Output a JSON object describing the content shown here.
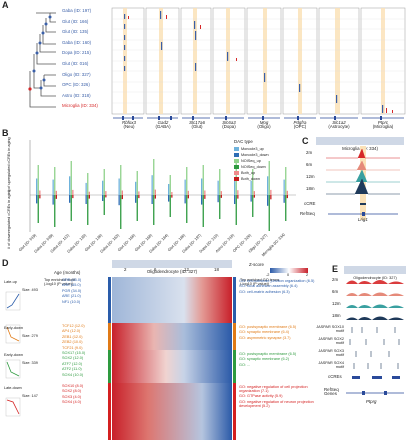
{
  "panel_labels": {
    "a": "A",
    "b": "B",
    "c": "C",
    "d": "D",
    "e": "E"
  },
  "panel_a": {
    "rows": [
      "Gaba (ID: 197)",
      "Glut (ID: 166)",
      "Glut (ID: 135)",
      "Gaba (ID: 160)",
      "Dopa (ID: 215)",
      "Glut (ID: 016)",
      "Oligo (ID: 327)",
      "OPC (ID: 326)",
      "Astro (ID: 318)",
      "Microglia (ID: 334)"
    ],
    "row_colors": [
      "#3a5fa8",
      "#3a5fa8",
      "#3a5fa8",
      "#3a5fa8",
      "#3a5fa8",
      "#3a5fa8",
      "#3a5fa8",
      "#3a5fa8",
      "#3a5fa8",
      "#d62728"
    ],
    "genes": [
      "Rbfox3",
      "Gad2",
      "Slc17a6",
      "Slc6a3",
      "Mog",
      "Pdgfra",
      "Slc1a2",
      "Ptprc"
    ],
    "gene_celltypes": [
      "(Neu)",
      "(GABA)",
      "(Glut)",
      "(Dopa)",
      "(Oligo)",
      "(OPC)",
      "(Astrocyte)",
      "(Microglia)"
    ]
  },
  "panel_b": {
    "ylabel_top": "# of upregulated cCREs in aging",
    "ylabel_bottom": "# of downregulated cCREs in aging",
    "legend_title": "DAC type",
    "legend": [
      {
        "label": "Monocle3_up",
        "color": "#6fb3dc"
      },
      {
        "label": "Monocle3_down",
        "color": "#2e6eb5"
      },
      {
        "label": "NOISeq_up",
        "color": "#8fd28a"
      },
      {
        "label": "NOISeq_down",
        "color": "#2e9a3f"
      },
      {
        "label": "Both_up",
        "color": "#f08b8b"
      },
      {
        "label": "Both_down",
        "color": "#c41d1d"
      }
    ],
    "categories": [
      "Glut (ID: 019)",
      "Gaba (ID: 039)",
      "Gaba (ID: 112)",
      "Gaba (ID: 135)",
      "Glut (ID: 136)",
      "Gaba (ID: 163)",
      "Glut (ID: 166)",
      "Glut (ID: 168)",
      "Gaba (ID: 184)",
      "Glut (ID: 186)",
      "Gaba (ID: 197)",
      "Dopa (ID: 215)",
      "Astro (ID: 318)",
      "OPC (ID: 326)",
      "Oligo (ID: 327)",
      "Microglia (ID: 334)"
    ]
  },
  "panel_c": {
    "title": "Microglia (ID: 334)",
    "tracks": [
      "2m",
      "6m",
      "12m",
      "18m"
    ],
    "track_colors": [
      "#d62728",
      "#e58a7a",
      "#3aa0a0",
      "#1f3a5a"
    ],
    "ccre_label": "cCRE",
    "refseq_label": "RefSeq",
    "gene": "Lrig1"
  },
  "panel_d": {
    "top_label": "Oligodendrocyte (ID: 327)",
    "age_label": "Age (months)",
    "ages": [
      "2",
      "6",
      "12",
      "18"
    ],
    "zscore_label": "Z-score",
    "zscore_ticks": [
      "-2",
      "0",
      "2"
    ],
    "motif_header": "Top enriched motif\n(-log10 (P value))",
    "go_header": "Top enriched GO terms\n(-log10 (P value))",
    "groups": [
      {
        "name": "Late-up",
        "size": "Size: 493",
        "color": "blue",
        "motifs": [
          "GRE (45.0)",
          "ARE (45.0)",
          "PGR (34.0)",
          "ARE (21.0)",
          "NF1 (10.0)"
        ],
        "go": [
          "GO: cell-substrate junction organization (6.5)",
          "GO: focal adhesion assembly (6.4)",
          "GO: cell-matrix adhesion (6.3)"
        ]
      },
      {
        "name": "Early-down",
        "size": "Size: 279",
        "color": "orange",
        "motifs": [
          "TCF12 (12.0)",
          "AP4 (12.0)",
          "ZEB1 (12.0)",
          "ZEB2 (10.0)",
          "TCF21 (9.0)"
        ],
        "go": [
          "GO: postsynaptic membrane (6.5)",
          "GO: synaptic membrane (6.4)",
          "GO: asymmetric synapse (3.7)"
        ]
      },
      {
        "name": "Early-down",
        "size": "Size: 339",
        "color": "green",
        "motifs": [
          "SOX17 (15.0)",
          "SOX2 (12.0)",
          "ATF7 (12.0)",
          "ATF2 (11.0)",
          "SOX4 (10.0)"
        ],
        "go": [
          "GO: postsynaptic membrane (6.5)",
          "GO: synaptic membrane (6.2)",
          "GO: ..."
        ]
      },
      {
        "name": "Late-down",
        "size": "Size: 147",
        "color": "red",
        "motifs": [
          "SOX10 (8.0)",
          "SOX2 (8.0)",
          "SOX3 (4.0)",
          "SOX4 (4.0)"
        ],
        "go": [
          "GO: negative regulation of cell projection organization (7.1)",
          "GO: GTPase activity (5.9)",
          "GO: negative regulation of neuron projection development (5.2)"
        ]
      }
    ]
  },
  "panel_e": {
    "title": "Oligodendrocyte (ID: 327)",
    "tracks": [
      "2m",
      "6m",
      "12m",
      "18m"
    ],
    "motif_tracks": [
      "JASPAR SOX10 motif",
      "JASPAR SOX2 motif",
      "JASPAR SOX3 motif",
      "JASPAR SOX4 motif"
    ],
    "ccre_label": "cCREs",
    "refseq_label": "RefSeq Genes",
    "gene": "Ptprg"
  }
}
